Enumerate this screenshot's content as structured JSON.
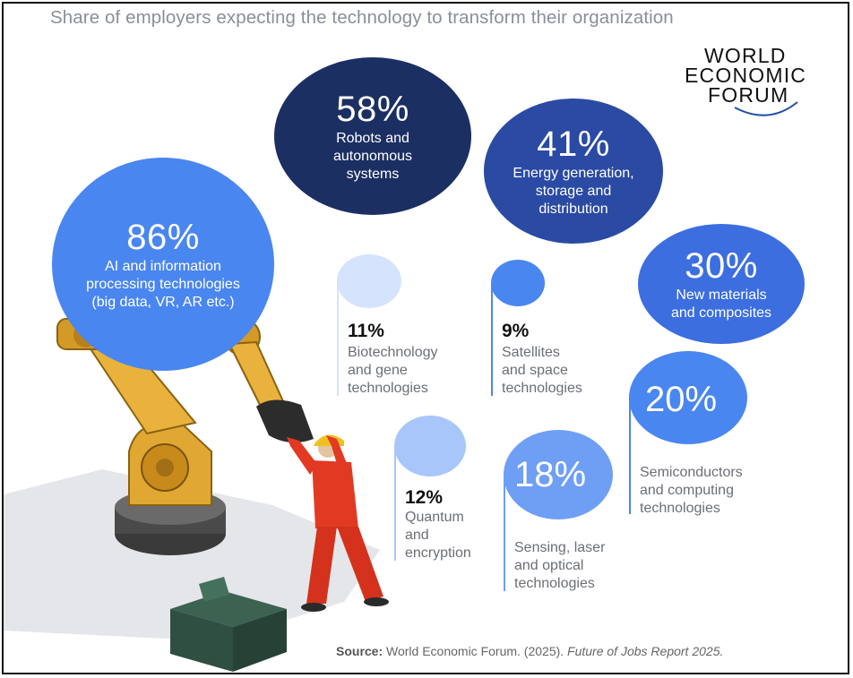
{
  "header": {
    "title": "Share of employers expecting the technology to transform their organization"
  },
  "logo": {
    "line1": "WORLD",
    "line2": "ECONOMIC",
    "line3": "FORUM"
  },
  "source": {
    "label": "Source:",
    "text": "World Economic Forum. (2025).",
    "publication": "Future of Jobs Report 2025."
  },
  "colors": {
    "navy": "#1c2f63",
    "royal": "#2a4aa3",
    "blue": "#3c6ee0",
    "mid": "#4a86f0",
    "light": "#a9c6fb",
    "pale": "#d5e3fc"
  },
  "chart_data": {
    "type": "bubble",
    "unit": "%",
    "items": [
      {
        "value": 86,
        "pct": "86%",
        "label": [
          "AI and information",
          "processing technologies",
          "(big data, VR, AR etc.)"
        ]
      },
      {
        "value": 58,
        "pct": "58%",
        "label": [
          "Robots and",
          "autonomous",
          "systems"
        ]
      },
      {
        "value": 41,
        "pct": "41%",
        "label": [
          "Energy generation,",
          "storage and",
          "distribution"
        ]
      },
      {
        "value": 30,
        "pct": "30%",
        "label": [
          "New materials",
          "and composites"
        ]
      },
      {
        "value": 20,
        "pct": "20%",
        "label": [
          "Semiconductors",
          "and computing",
          "technologies"
        ]
      },
      {
        "value": 18,
        "pct": "18%",
        "label": [
          "Sensing, laser",
          "and optical",
          "technologies"
        ]
      },
      {
        "value": 12,
        "pct": "12%",
        "label": [
          "Quantum",
          "and",
          "encryption"
        ]
      },
      {
        "value": 11,
        "pct": "11%",
        "label": [
          "Biotechnology",
          "and gene",
          "technologies"
        ]
      },
      {
        "value": 9,
        "pct": "9%",
        "label": [
          "Satellites",
          "and space",
          "technologies"
        ]
      }
    ]
  }
}
